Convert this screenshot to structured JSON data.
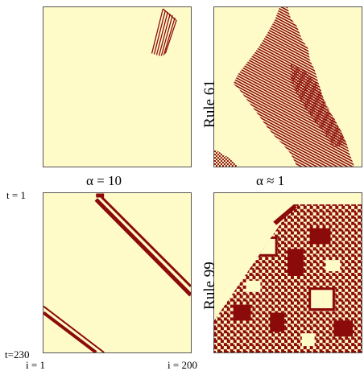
{
  "colors": {
    "background": "#fffbc8",
    "cell": "#8b0a0a"
  },
  "panels": {
    "top_left": {},
    "top_right": {},
    "bottom_left": {},
    "bottom_right": {}
  },
  "labels": {
    "rule_top": "Rule 61",
    "rule_bottom": "Rule 99",
    "alpha_left": "α = 10",
    "alpha_right": "α ≈ 1",
    "t_start": "t = 1",
    "t_end": "t=230",
    "i_start": "i = 1",
    "i_end": "i = 200"
  }
}
